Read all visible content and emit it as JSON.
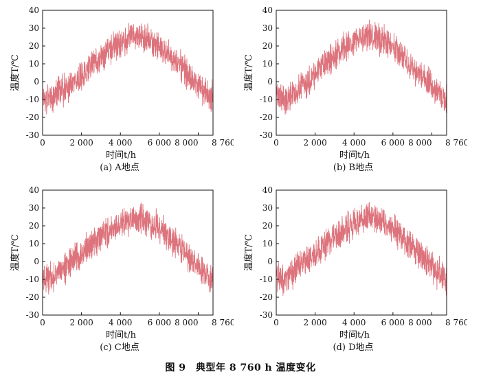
{
  "figure": {
    "caption": "图 9　典型年 8 760 h 温度变化"
  },
  "chart_data": [
    {
      "type": "line",
      "caption": "(a)  A地点",
      "xlabel": "时间t/h",
      "ylabel": "温度T/℃",
      "xlim": [
        0,
        8760
      ],
      "ylim": [
        -30,
        40
      ],
      "xticks": [
        0,
        2000,
        4000,
        6000,
        8000,
        8760
      ],
      "xtick_labels": [
        "0",
        "2 000",
        "4 000",
        "6 000",
        "8 000",
        "8 760"
      ],
      "yticks": [
        -30,
        -20,
        -10,
        0,
        10,
        20,
        30,
        40
      ],
      "grid": false,
      "color": "#d9646e",
      "series": [
        {
          "x": [
            0,
            360,
            730,
            1095,
            1460,
            1825,
            2190,
            2555,
            2920,
            3285,
            3650,
            4015,
            4380,
            4745,
            5110,
            5475,
            5840,
            6205,
            6570,
            6935,
            7300,
            7665,
            8030,
            8395,
            8760
          ],
          "y": [
            -8,
            -10,
            -6,
            -4,
            -1,
            2,
            6,
            10,
            13,
            16,
            19,
            22,
            24,
            25,
            25,
            23,
            21,
            18,
            14,
            10,
            6,
            2,
            -2,
            -6,
            -9
          ]
        }
      ]
    },
    {
      "type": "line",
      "caption": "(b)  B地点",
      "xlabel": "时间t/h",
      "ylabel": "温度T/℃",
      "xlim": [
        0,
        8760
      ],
      "ylim": [
        -30,
        40
      ],
      "xticks": [
        0,
        2000,
        4000,
        6000,
        8000,
        8760
      ],
      "xtick_labels": [
        "0",
        "2 000",
        "4 000",
        "6 000",
        "8 000",
        "8 760"
      ],
      "yticks": [
        -30,
        -20,
        -10,
        0,
        10,
        20,
        30,
        40
      ],
      "grid": false,
      "color": "#d9646e",
      "series": [
        {
          "x": [
            0,
            360,
            730,
            1095,
            1460,
            1825,
            2190,
            2555,
            2920,
            3285,
            3650,
            4015,
            4380,
            4745,
            5110,
            5475,
            5840,
            6205,
            6570,
            6935,
            7300,
            7665,
            8030,
            8395,
            8760
          ],
          "y": [
            -6,
            -11,
            -8,
            -5,
            -2,
            2,
            6,
            10,
            14,
            17,
            20,
            23,
            25,
            26,
            25,
            23,
            20,
            17,
            13,
            9,
            5,
            1,
            -3,
            -7,
            -10
          ]
        }
      ]
    },
    {
      "type": "line",
      "caption": "(c)  C地点",
      "xlabel": "时间t/h",
      "ylabel": "温度T/℃",
      "xlim": [
        0,
        8760
      ],
      "ylim": [
        -30,
        40
      ],
      "xticks": [
        0,
        2000,
        4000,
        6000,
        8000,
        8760
      ],
      "xtick_labels": [
        "0",
        "2 000",
        "4 000",
        "6 000",
        "8 000",
        "8 760"
      ],
      "yticks": [
        -30,
        -20,
        -10,
        0,
        10,
        20,
        30,
        40
      ],
      "grid": false,
      "color": "#d9646e",
      "series": [
        {
          "x": [
            0,
            360,
            730,
            1095,
            1460,
            1825,
            2190,
            2555,
            2920,
            3285,
            3650,
            4015,
            4380,
            4745,
            5110,
            5475,
            5840,
            6205,
            6570,
            6935,
            7300,
            7665,
            8030,
            8395,
            8760
          ],
          "y": [
            -10,
            -9,
            -7,
            -4,
            0,
            3,
            7,
            10,
            13,
            16,
            19,
            21,
            23,
            24,
            24,
            22,
            20,
            17,
            13,
            9,
            5,
            1,
            -3,
            -7,
            -11
          ]
        }
      ]
    },
    {
      "type": "line",
      "caption": "(d)  D地点",
      "xlabel": "时间t/h",
      "ylabel": "温度T/℃",
      "xlim": [
        0,
        8760
      ],
      "ylim": [
        -30,
        40
      ],
      "xticks": [
        0,
        2000,
        4000,
        6000,
        8000,
        8760
      ],
      "xtick_labels": [
        "0",
        "2 000",
        "4 000",
        "6 000",
        "8 000",
        "8 760"
      ],
      "yticks": [
        -30,
        -20,
        -10,
        0,
        10,
        20,
        30,
        40
      ],
      "grid": false,
      "color": "#d9646e",
      "series": [
        {
          "x": [
            0,
            360,
            730,
            1095,
            1460,
            1825,
            2190,
            2555,
            2920,
            3285,
            3650,
            4015,
            4380,
            4745,
            5110,
            5475,
            5840,
            6205,
            6570,
            6935,
            7300,
            7665,
            8030,
            8395,
            8760
          ],
          "y": [
            -9,
            -10,
            -7,
            -3,
            0,
            3,
            6,
            10,
            13,
            16,
            19,
            22,
            24,
            25,
            24,
            22,
            20,
            17,
            13,
            9,
            5,
            1,
            -3,
            -7,
            -11
          ]
        }
      ]
    }
  ]
}
